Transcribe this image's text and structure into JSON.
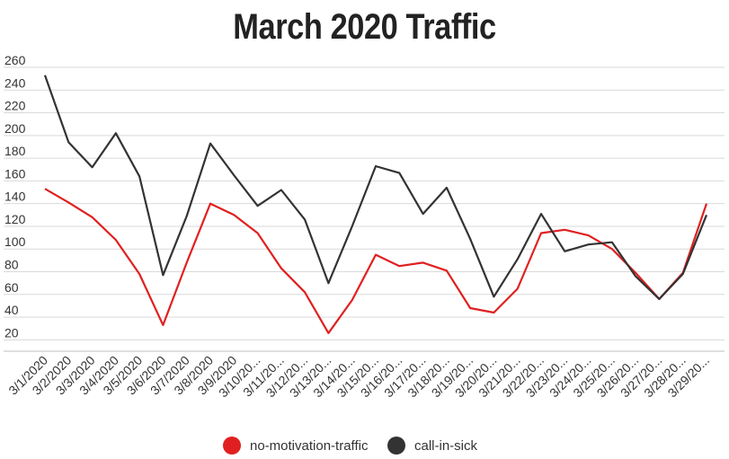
{
  "chart_data": {
    "type": "line",
    "title": "March 2020 Traffic",
    "xlabel": "",
    "ylabel": "",
    "ylim": [
      10,
      260
    ],
    "yticks": [
      20,
      40,
      60,
      80,
      100,
      120,
      140,
      160,
      180,
      200,
      220,
      240,
      260
    ],
    "grid": true,
    "legend_position": "bottom",
    "categories": [
      "3/1/2020",
      "3/2/2020",
      "3/3/2020",
      "3/4/2020",
      "3/5/2020",
      "3/6/2020",
      "3/7/2020",
      "3/8/2020",
      "3/9/2020",
      "3/10/20...",
      "3/11/20...",
      "3/12/20...",
      "3/13/20...",
      "3/14/20...",
      "3/15/20...",
      "3/16/20...",
      "3/17/20...",
      "3/18/20...",
      "3/19/20...",
      "3/20/20...",
      "3/21/20...",
      "3/22/20...",
      "3/23/20...",
      "3/24/20...",
      "3/25/20...",
      "3/26/20...",
      "3/27/20...",
      "3/28/20...",
      "3/29/20..."
    ],
    "series": [
      {
        "name": "no-motivation-traffic",
        "color": "#e02020",
        "values": [
          153,
          141,
          128,
          108,
          78,
          33,
          88,
          140,
          130,
          114,
          83,
          62,
          26,
          55,
          95,
          85,
          88,
          81,
          48,
          44,
          65,
          114,
          117,
          112,
          100,
          79,
          56,
          79,
          140
        ]
      },
      {
        "name": "call-in-sick",
        "color": "#333333",
        "values": [
          253,
          194,
          172,
          202,
          164,
          77,
          129,
          193,
          165,
          138,
          152,
          126,
          70,
          120,
          173,
          167,
          131,
          154,
          109,
          58,
          91,
          131,
          98,
          104,
          106,
          76,
          56,
          78,
          130
        ]
      }
    ]
  }
}
